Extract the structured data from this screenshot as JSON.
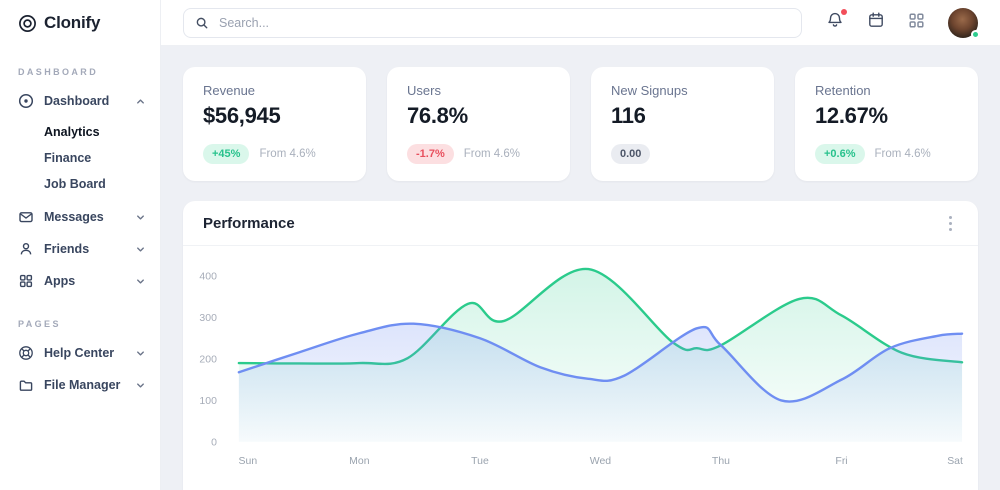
{
  "app": {
    "name": "Clonify"
  },
  "topbar": {
    "search_placeholder": "Search...",
    "bell_has_notification": true,
    "avatar_status": "online"
  },
  "sidebar": {
    "sections": [
      {
        "label": "DASHBOARD",
        "items": [
          {
            "label": "Dashboard",
            "icon": "disc-icon",
            "expanded": true,
            "children": [
              {
                "label": "Analytics",
                "active": true
              },
              {
                "label": "Finance",
                "active": false
              },
              {
                "label": "Job Board",
                "active": false
              }
            ]
          },
          {
            "label": "Messages",
            "icon": "mail-icon",
            "expanded": false
          },
          {
            "label": "Friends",
            "icon": "user-icon",
            "expanded": false
          },
          {
            "label": "Apps",
            "icon": "grid-icon",
            "expanded": false
          }
        ]
      },
      {
        "label": "PAGES",
        "items": [
          {
            "label": "Help Center",
            "icon": "lifebuoy-icon",
            "expanded": false
          },
          {
            "label": "File Manager",
            "icon": "folder-icon",
            "expanded": false
          }
        ]
      }
    ]
  },
  "stats": [
    {
      "label": "Revenue",
      "value": "$56,945",
      "badge": "+45%",
      "badge_type": "positive",
      "note": "From 4.6%"
    },
    {
      "label": "Users",
      "value": "76.8%",
      "badge": "-1.7%",
      "badge_type": "negative",
      "note": "From 4.6%"
    },
    {
      "label": "New Signups",
      "value": "116",
      "badge": "0.00",
      "badge_type": "neutral",
      "note": ""
    },
    {
      "label": "Retention",
      "value": "12.67%",
      "badge": "+0.6%",
      "badge_type": "positive",
      "note": "From 4.6%"
    }
  ],
  "performance_card": {
    "title": "Performance"
  },
  "chart_data": {
    "type": "area",
    "title": "Performance",
    "curve": "smooth",
    "grid": false,
    "legend": "none",
    "categories": [
      "Sun",
      "Mon",
      "Tue",
      "Wed",
      "Thu",
      "Fri",
      "Sat"
    ],
    "y_ticks": [
      0,
      100,
      200,
      300,
      400
    ],
    "ylim": [
      0,
      440
    ],
    "xlabel": "",
    "ylabel": "",
    "series": [
      {
        "name": "series-green",
        "color": "#2bcb8c",
        "fill_top": "rgba(43,203,140,0.20)",
        "fill_bottom": "rgba(43,203,140,0.02)",
        "points": [
          {
            "x": 0,
            "y": 190
          },
          {
            "x": 0.5,
            "y": 189
          },
          {
            "x": 1,
            "y": 190
          },
          {
            "x": 1.4,
            "y": 202
          },
          {
            "x": 1.9,
            "y": 333
          },
          {
            "x": 2.2,
            "y": 292
          },
          {
            "x": 2.9,
            "y": 417
          },
          {
            "x": 3.6,
            "y": 240
          },
          {
            "x": 3.8,
            "y": 226
          },
          {
            "x": 4,
            "y": 233
          },
          {
            "x": 4.65,
            "y": 345
          },
          {
            "x": 5,
            "y": 305
          },
          {
            "x": 5.5,
            "y": 215
          },
          {
            "x": 6,
            "y": 192
          }
        ]
      },
      {
        "name": "series-blue",
        "color": "#6f8ef2",
        "fill_top": "rgba(111,142,242,0.32)",
        "fill_bottom": "rgba(111,142,242,0.03)",
        "points": [
          {
            "x": 0,
            "y": 168
          },
          {
            "x": 0.5,
            "y": 216
          },
          {
            "x": 1,
            "y": 262
          },
          {
            "x": 1.45,
            "y": 285
          },
          {
            "x": 2,
            "y": 250
          },
          {
            "x": 2.5,
            "y": 180
          },
          {
            "x": 2.9,
            "y": 152
          },
          {
            "x": 3.2,
            "y": 160
          },
          {
            "x": 3.8,
            "y": 274
          },
          {
            "x": 4,
            "y": 233
          },
          {
            "x": 4.5,
            "y": 100
          },
          {
            "x": 5,
            "y": 150
          },
          {
            "x": 5.4,
            "y": 226
          },
          {
            "x": 5.8,
            "y": 256
          },
          {
            "x": 6,
            "y": 261
          }
        ]
      }
    ]
  },
  "colors": {
    "accent_green": "#2bcb8c",
    "accent_blue": "#6f8ef2",
    "badge_positive_text": "#27c28c",
    "badge_negative_text": "#e8505e",
    "content_bg": "#eef0f5",
    "axis_label": "#a6acb8"
  }
}
